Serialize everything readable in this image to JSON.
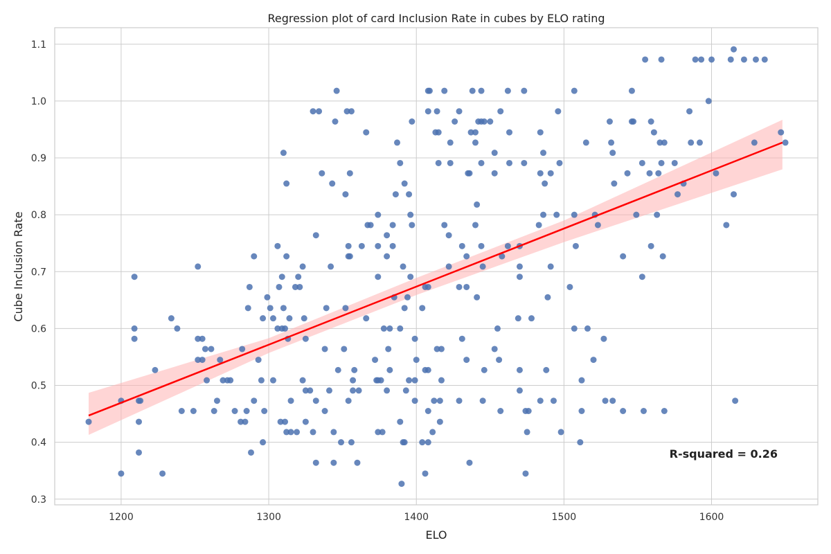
{
  "chart_data": {
    "type": "scatter",
    "title": "Regression plot of card Inclusion Rate in cubes by ELO rating",
    "xlabel": "ELO",
    "ylabel": "Cube Inclusion Rate",
    "xlim": [
      1155,
      1672
    ],
    "ylim": [
      0.29,
      1.129
    ],
    "xticks": [
      1200,
      1300,
      1400,
      1500,
      1600
    ],
    "yticks": [
      0.3,
      0.4,
      0.5,
      0.6,
      0.7,
      0.8,
      0.9,
      1.0,
      1.1
    ],
    "grid": true,
    "colors": {
      "points": "#4c72b0",
      "line": "#ff0000",
      "band": "#ffb3b3",
      "grid": "#cccccc"
    },
    "annotation": "R-squared = 0.26",
    "regression": {
      "x": [
        1178,
        1648
      ],
      "y": [
        0.447,
        0.927
      ]
    },
    "confidence_band": {
      "x": [
        1178,
        1300,
        1400,
        1500,
        1648
      ],
      "lower": [
        0.413,
        0.557,
        0.659,
        0.752,
        0.88
      ],
      "upper": [
        0.487,
        0.583,
        0.689,
        0.79,
        0.967
      ]
    },
    "points": [
      [
        1200,
        0.345
      ],
      [
        1228,
        0.345
      ],
      [
        1406,
        0.345
      ],
      [
        1474,
        0.345
      ],
      [
        1332,
        0.364
      ],
      [
        1344,
        0.364
      ],
      [
        1360,
        0.364
      ],
      [
        1436,
        0.364
      ],
      [
        1212,
        0.382
      ],
      [
        1288,
        0.382
      ],
      [
        1390,
        0.327
      ],
      [
        1296,
        0.4
      ],
      [
        1349,
        0.4
      ],
      [
        1356,
        0.4
      ],
      [
        1391,
        0.4
      ],
      [
        1392,
        0.4
      ],
      [
        1404,
        0.4
      ],
      [
        1408,
        0.4
      ],
      [
        1511,
        0.4
      ],
      [
        1312,
        0.418
      ],
      [
        1315,
        0.418
      ],
      [
        1319,
        0.418
      ],
      [
        1330,
        0.418
      ],
      [
        1344,
        0.418
      ],
      [
        1374,
        0.418
      ],
      [
        1377,
        0.418
      ],
      [
        1411,
        0.418
      ],
      [
        1475,
        0.418
      ],
      [
        1498,
        0.418
      ],
      [
        1178,
        0.436
      ],
      [
        1212,
        0.436
      ],
      [
        1281,
        0.436
      ],
      [
        1284,
        0.436
      ],
      [
        1308,
        0.436
      ],
      [
        1311,
        0.436
      ],
      [
        1325,
        0.436
      ],
      [
        1389,
        0.436
      ],
      [
        1416,
        0.436
      ],
      [
        1241,
        0.455
      ],
      [
        1249,
        0.455
      ],
      [
        1263,
        0.455
      ],
      [
        1277,
        0.455
      ],
      [
        1285,
        0.455
      ],
      [
        1297,
        0.455
      ],
      [
        1338,
        0.455
      ],
      [
        1408,
        0.455
      ],
      [
        1457,
        0.455
      ],
      [
        1474,
        0.455
      ],
      [
        1476,
        0.455
      ],
      [
        1512,
        0.455
      ],
      [
        1540,
        0.455
      ],
      [
        1554,
        0.455
      ],
      [
        1568,
        0.455
      ],
      [
        1200,
        0.473
      ],
      [
        1212,
        0.473
      ],
      [
        1213,
        0.473
      ],
      [
        1265,
        0.473
      ],
      [
        1290,
        0.473
      ],
      [
        1315,
        0.473
      ],
      [
        1332,
        0.473
      ],
      [
        1354,
        0.473
      ],
      [
        1399,
        0.473
      ],
      [
        1412,
        0.473
      ],
      [
        1416,
        0.473
      ],
      [
        1429,
        0.473
      ],
      [
        1445,
        0.473
      ],
      [
        1484,
        0.473
      ],
      [
        1493,
        0.473
      ],
      [
        1528,
        0.473
      ],
      [
        1533,
        0.473
      ],
      [
        1616,
        0.473
      ],
      [
        1325,
        0.491
      ],
      [
        1328,
        0.491
      ],
      [
        1341,
        0.491
      ],
      [
        1357,
        0.491
      ],
      [
        1361,
        0.491
      ],
      [
        1380,
        0.491
      ],
      [
        1393,
        0.491
      ],
      [
        1470,
        0.491
      ],
      [
        1258,
        0.509
      ],
      [
        1269,
        0.509
      ],
      [
        1272,
        0.509
      ],
      [
        1274,
        0.509
      ],
      [
        1295,
        0.509
      ],
      [
        1303,
        0.509
      ],
      [
        1323,
        0.509
      ],
      [
        1357,
        0.509
      ],
      [
        1373,
        0.509
      ],
      [
        1374,
        0.509
      ],
      [
        1376,
        0.509
      ],
      [
        1395,
        0.509
      ],
      [
        1399,
        0.509
      ],
      [
        1417,
        0.509
      ],
      [
        1512,
        0.509
      ],
      [
        1223,
        0.527
      ],
      [
        1347,
        0.527
      ],
      [
        1358,
        0.527
      ],
      [
        1382,
        0.527
      ],
      [
        1406,
        0.527
      ],
      [
        1408,
        0.527
      ],
      [
        1446,
        0.527
      ],
      [
        1470,
        0.527
      ],
      [
        1488,
        0.527
      ],
      [
        1252,
        0.545
      ],
      [
        1255,
        0.545
      ],
      [
        1267,
        0.545
      ],
      [
        1293,
        0.545
      ],
      [
        1372,
        0.545
      ],
      [
        1400,
        0.545
      ],
      [
        1434,
        0.545
      ],
      [
        1456,
        0.545
      ],
      [
        1520,
        0.545
      ],
      [
        1257,
        0.564
      ],
      [
        1261,
        0.564
      ],
      [
        1282,
        0.564
      ],
      [
        1338,
        0.564
      ],
      [
        1351,
        0.564
      ],
      [
        1381,
        0.564
      ],
      [
        1414,
        0.564
      ],
      [
        1417,
        0.564
      ],
      [
        1453,
        0.564
      ],
      [
        1209,
        0.582
      ],
      [
        1252,
        0.582
      ],
      [
        1255,
        0.582
      ],
      [
        1313,
        0.582
      ],
      [
        1325,
        0.582
      ],
      [
        1399,
        0.582
      ],
      [
        1431,
        0.582
      ],
      [
        1527,
        0.582
      ],
      [
        1209,
        0.6
      ],
      [
        1238,
        0.6
      ],
      [
        1306,
        0.6
      ],
      [
        1309,
        0.6
      ],
      [
        1311,
        0.6
      ],
      [
        1378,
        0.6
      ],
      [
        1382,
        0.6
      ],
      [
        1389,
        0.6
      ],
      [
        1455,
        0.6
      ],
      [
        1507,
        0.6
      ],
      [
        1516,
        0.6
      ],
      [
        1234,
        0.618
      ],
      [
        1296,
        0.618
      ],
      [
        1303,
        0.618
      ],
      [
        1314,
        0.618
      ],
      [
        1324,
        0.618
      ],
      [
        1366,
        0.618
      ],
      [
        1469,
        0.618
      ],
      [
        1478,
        0.618
      ],
      [
        1286,
        0.636
      ],
      [
        1301,
        0.636
      ],
      [
        1310,
        0.636
      ],
      [
        1339,
        0.636
      ],
      [
        1352,
        0.636
      ],
      [
        1392,
        0.636
      ],
      [
        1404,
        0.636
      ],
      [
        1299,
        0.655
      ],
      [
        1385,
        0.655
      ],
      [
        1394,
        0.655
      ],
      [
        1441,
        0.655
      ],
      [
        1489,
        0.655
      ],
      [
        1287,
        0.673
      ],
      [
        1307,
        0.673
      ],
      [
        1318,
        0.673
      ],
      [
        1321,
        0.673
      ],
      [
        1406,
        0.673
      ],
      [
        1408,
        0.673
      ],
      [
        1429,
        0.673
      ],
      [
        1434,
        0.673
      ],
      [
        1504,
        0.673
      ],
      [
        1209,
        0.691
      ],
      [
        1309,
        0.691
      ],
      [
        1320,
        0.691
      ],
      [
        1374,
        0.691
      ],
      [
        1396,
        0.691
      ],
      [
        1470,
        0.691
      ],
      [
        1553,
        0.691
      ],
      [
        1252,
        0.709
      ],
      [
        1323,
        0.709
      ],
      [
        1342,
        0.709
      ],
      [
        1391,
        0.709
      ],
      [
        1422,
        0.709
      ],
      [
        1445,
        0.709
      ],
      [
        1470,
        0.709
      ],
      [
        1491,
        0.709
      ],
      [
        1290,
        0.727
      ],
      [
        1312,
        0.727
      ],
      [
        1354,
        0.727
      ],
      [
        1355,
        0.727
      ],
      [
        1380,
        0.727
      ],
      [
        1434,
        0.727
      ],
      [
        1458,
        0.727
      ],
      [
        1540,
        0.727
      ],
      [
        1567,
        0.727
      ],
      [
        1306,
        0.745
      ],
      [
        1354,
        0.745
      ],
      [
        1363,
        0.745
      ],
      [
        1374,
        0.745
      ],
      [
        1384,
        0.745
      ],
      [
        1431,
        0.745
      ],
      [
        1444,
        0.745
      ],
      [
        1462,
        0.745
      ],
      [
        1470,
        0.745
      ],
      [
        1508,
        0.745
      ],
      [
        1559,
        0.745
      ],
      [
        1332,
        0.764
      ],
      [
        1380,
        0.764
      ],
      [
        1422,
        0.764
      ],
      [
        1367,
        0.782
      ],
      [
        1369,
        0.782
      ],
      [
        1384,
        0.782
      ],
      [
        1397,
        0.782
      ],
      [
        1419,
        0.782
      ],
      [
        1440,
        0.782
      ],
      [
        1483,
        0.782
      ],
      [
        1523,
        0.782
      ],
      [
        1610,
        0.782
      ],
      [
        1374,
        0.8
      ],
      [
        1396,
        0.8
      ],
      [
        1486,
        0.8
      ],
      [
        1495,
        0.8
      ],
      [
        1507,
        0.8
      ],
      [
        1521,
        0.8
      ],
      [
        1549,
        0.8
      ],
      [
        1563,
        0.8
      ],
      [
        1441,
        0.818
      ],
      [
        1352,
        0.836
      ],
      [
        1386,
        0.836
      ],
      [
        1395,
        0.836
      ],
      [
        1577,
        0.836
      ],
      [
        1615,
        0.836
      ],
      [
        1312,
        0.855
      ],
      [
        1343,
        0.855
      ],
      [
        1392,
        0.855
      ],
      [
        1487,
        0.855
      ],
      [
        1534,
        0.855
      ],
      [
        1581,
        0.855
      ],
      [
        1336,
        0.873
      ],
      [
        1355,
        0.873
      ],
      [
        1435,
        0.873
      ],
      [
        1436,
        0.873
      ],
      [
        1453,
        0.873
      ],
      [
        1484,
        0.873
      ],
      [
        1491,
        0.873
      ],
      [
        1543,
        0.873
      ],
      [
        1558,
        0.873
      ],
      [
        1564,
        0.873
      ],
      [
        1603,
        0.873
      ],
      [
        1389,
        0.891
      ],
      [
        1415,
        0.891
      ],
      [
        1423,
        0.891
      ],
      [
        1444,
        0.891
      ],
      [
        1463,
        0.891
      ],
      [
        1473,
        0.891
      ],
      [
        1497,
        0.891
      ],
      [
        1553,
        0.891
      ],
      [
        1566,
        0.891
      ],
      [
        1575,
        0.891
      ],
      [
        1310,
        0.909
      ],
      [
        1453,
        0.909
      ],
      [
        1486,
        0.909
      ],
      [
        1533,
        0.909
      ],
      [
        1387,
        0.927
      ],
      [
        1423,
        0.927
      ],
      [
        1440,
        0.927
      ],
      [
        1515,
        0.927
      ],
      [
        1532,
        0.927
      ],
      [
        1565,
        0.927
      ],
      [
        1568,
        0.927
      ],
      [
        1586,
        0.927
      ],
      [
        1592,
        0.927
      ],
      [
        1629,
        0.927
      ],
      [
        1650,
        0.927
      ],
      [
        1366,
        0.945
      ],
      [
        1413,
        0.945
      ],
      [
        1415,
        0.945
      ],
      [
        1437,
        0.945
      ],
      [
        1440,
        0.945
      ],
      [
        1463,
        0.945
      ],
      [
        1484,
        0.945
      ],
      [
        1561,
        0.945
      ],
      [
        1647,
        0.945
      ],
      [
        1345,
        0.964
      ],
      [
        1397,
        0.964
      ],
      [
        1426,
        0.964
      ],
      [
        1442,
        0.964
      ],
      [
        1444,
        0.964
      ],
      [
        1446,
        0.964
      ],
      [
        1450,
        0.964
      ],
      [
        1531,
        0.964
      ],
      [
        1546,
        0.964
      ],
      [
        1547,
        0.964
      ],
      [
        1559,
        0.964
      ],
      [
        1330,
        0.982
      ],
      [
        1334,
        0.982
      ],
      [
        1353,
        0.982
      ],
      [
        1356,
        0.982
      ],
      [
        1408,
        0.982
      ],
      [
        1414,
        0.982
      ],
      [
        1429,
        0.982
      ],
      [
        1457,
        0.982
      ],
      [
        1496,
        0.982
      ],
      [
        1585,
        0.982
      ],
      [
        1598,
        1.0
      ],
      [
        1346,
        1.018
      ],
      [
        1408,
        1.018
      ],
      [
        1409,
        1.018
      ],
      [
        1419,
        1.018
      ],
      [
        1438,
        1.018
      ],
      [
        1444,
        1.018
      ],
      [
        1462,
        1.018
      ],
      [
        1473,
        1.018
      ],
      [
        1507,
        1.018
      ],
      [
        1546,
        1.018
      ],
      [
        1555,
        1.073
      ],
      [
        1566,
        1.073
      ],
      [
        1589,
        1.073
      ],
      [
        1593,
        1.073
      ],
      [
        1600,
        1.073
      ],
      [
        1613,
        1.073
      ],
      [
        1622,
        1.073
      ],
      [
        1630,
        1.073
      ],
      [
        1636,
        1.073
      ],
      [
        1615,
        1.091
      ]
    ]
  }
}
